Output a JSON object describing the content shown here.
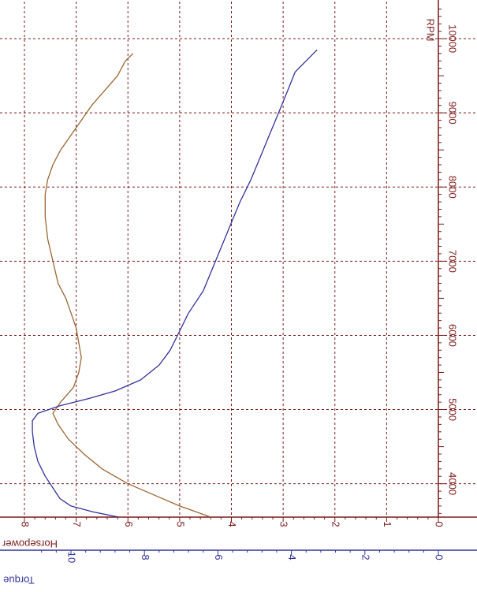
{
  "chart_data": {
    "type": "line",
    "orientation": "rotated-90",
    "title": "",
    "xlabel": "RPM",
    "x_ticks": [
      4000,
      5000,
      6000,
      7000,
      8000,
      9000,
      10000
    ],
    "xlim": [
      3550,
      10500
    ],
    "hp_axis": {
      "label": "Horsepower",
      "ticks": [
        0,
        1,
        2,
        3,
        4,
        5,
        6,
        7,
        8
      ],
      "lim": [
        0,
        8.35
      ]
    },
    "torque_axis": {
      "label": "Torque",
      "ticks": [
        0,
        2,
        4,
        6,
        8,
        10
      ],
      "lim": [
        0,
        11.5
      ]
    },
    "grid": true,
    "series": [
      {
        "name": "Horsepower",
        "color": "#996633",
        "axis": "hp",
        "x": [
          3550,
          3700,
          3850,
          4000,
          4200,
          4400,
          4600,
          4800,
          4950,
          5100,
          5300,
          5500,
          5700,
          5900,
          6100,
          6300,
          6500,
          6700,
          7000,
          7300,
          7600,
          7900,
          8100,
          8300,
          8500,
          8700,
          8900,
          9100,
          9300,
          9500,
          9700,
          9800
        ],
        "values": [
          4.4,
          5.0,
          5.5,
          6.0,
          6.5,
          6.85,
          7.15,
          7.35,
          7.45,
          7.3,
          7.05,
          6.95,
          6.9,
          6.95,
          7.0,
          7.1,
          7.2,
          7.35,
          7.45,
          7.55,
          7.6,
          7.6,
          7.55,
          7.45,
          7.3,
          7.1,
          6.9,
          6.7,
          6.45,
          6.2,
          6.05,
          5.9
        ]
      },
      {
        "name": "Torque",
        "color": "#333399",
        "axis": "torque",
        "x": [
          3550,
          3620,
          3700,
          3800,
          3950,
          4100,
          4300,
          4500,
          4700,
          4850,
          4950,
          5050,
          5150,
          5250,
          5400,
          5600,
          5800,
          6000,
          6300,
          6600,
          6900,
          7200,
          7500,
          7800,
          8100,
          8400,
          8700,
          9000,
          9300,
          9550,
          9700,
          9850
        ],
        "values": [
          8.7,
          9.4,
          10.0,
          10.3,
          10.5,
          10.7,
          10.9,
          11.0,
          11.05,
          11.05,
          10.9,
          10.3,
          9.5,
          8.8,
          8.1,
          7.6,
          7.3,
          7.1,
          6.8,
          6.4,
          6.15,
          5.9,
          5.65,
          5.4,
          5.1,
          4.85,
          4.6,
          4.35,
          4.1,
          3.9,
          3.6,
          3.3
        ]
      }
    ]
  }
}
